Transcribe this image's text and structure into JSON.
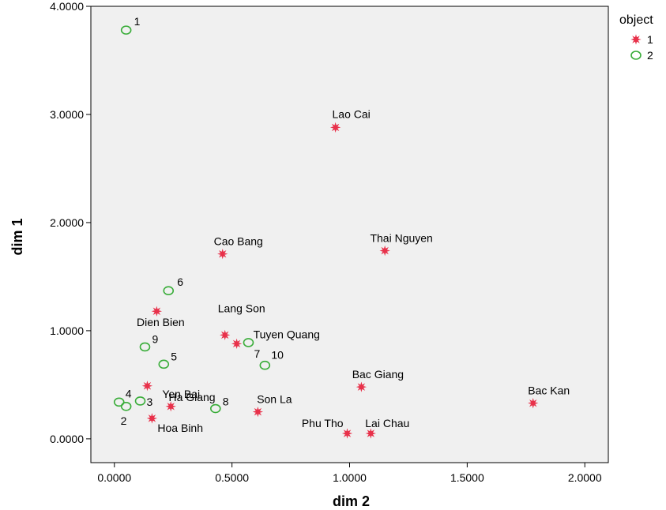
{
  "chart_data": {
    "type": "scatter",
    "xlabel": "dim 2",
    "ylabel": "dim 1",
    "xlim": [
      -0.1,
      2.1
    ],
    "ylim": [
      -0.22,
      4.0
    ],
    "xticks": [
      "0.0000",
      "0.5000",
      "1.0000",
      "1.5000",
      "2.0000"
    ],
    "xtick_values": [
      0,
      0.5,
      1.0,
      1.5,
      2.0
    ],
    "yticks": [
      "0.0000",
      "1.0000",
      "2.0000",
      "3.0000",
      "4.0000"
    ],
    "ytick_values": [
      0,
      1.0,
      2.0,
      3.0,
      4.0
    ],
    "grid": false,
    "legend": {
      "title": "object",
      "placement": "top-right",
      "entries": [
        {
          "label": "1",
          "marker": "star-icon",
          "color": "#e8314a"
        },
        {
          "label": "2",
          "marker": "circle-icon",
          "color": "#3aad3a"
        }
      ]
    },
    "series": [
      {
        "name": "1",
        "marker": "star",
        "color": "#e8314a",
        "points": [
          {
            "label": "Lao Cai",
            "x": 0.94,
            "y": 2.88
          },
          {
            "label": "Thai Nguyen",
            "x": 1.15,
            "y": 1.74
          },
          {
            "label": "Cao Bang",
            "x": 0.46,
            "y": 1.71
          },
          {
            "label": "Dien Bien",
            "x": 0.18,
            "y": 1.18
          },
          {
            "label": "Lang Son",
            "x": 0.47,
            "y": 0.96
          },
          {
            "label": "Tuyen Quang",
            "x": 0.52,
            "y": 0.88
          },
          {
            "label": "Ha Giang",
            "x": 0.14,
            "y": 0.49
          },
          {
            "label": "Bac Giang",
            "x": 1.05,
            "y": 0.48
          },
          {
            "label": "Bac Kan",
            "x": 1.78,
            "y": 0.33
          },
          {
            "label": "Yen Bai",
            "x": 0.24,
            "y": 0.3
          },
          {
            "label": "Son La",
            "x": 0.61,
            "y": 0.25
          },
          {
            "label": "Hoa Binh",
            "x": 0.16,
            "y": 0.19
          },
          {
            "label": "Phu Tho",
            "x": 0.99,
            "y": 0.05
          },
          {
            "label": "Lai Chau",
            "x": 1.09,
            "y": 0.05
          }
        ]
      },
      {
        "name": "2",
        "marker": "circle",
        "color": "#3aad3a",
        "points": [
          {
            "label": "1",
            "x": 0.05,
            "y": 3.78
          },
          {
            "label": "6",
            "x": 0.23,
            "y": 1.37
          },
          {
            "label": "9",
            "x": 0.13,
            "y": 0.85
          },
          {
            "label": "5",
            "x": 0.21,
            "y": 0.69
          },
          {
            "label": "7",
            "x": 0.57,
            "y": 0.89
          },
          {
            "label": "10",
            "x": 0.64,
            "y": 0.68
          },
          {
            "label": "4",
            "x": 0.02,
            "y": 0.34
          },
          {
            "label": "3",
            "x": 0.11,
            "y": 0.35
          },
          {
            "label": "2",
            "x": 0.05,
            "y": 0.3
          },
          {
            "label": "8",
            "x": 0.43,
            "y": 0.28
          }
        ]
      }
    ]
  }
}
